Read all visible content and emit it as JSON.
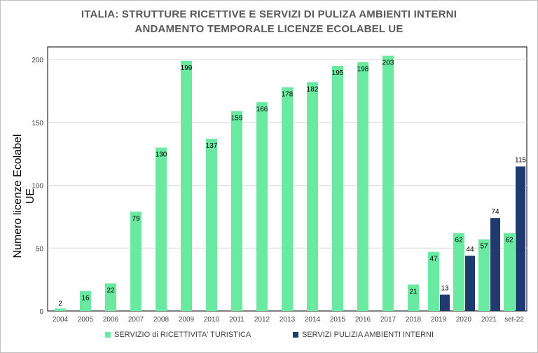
{
  "title_line1": "ITALIA:  STRUTTURE RICETTIVE E SERVIZI DI PULIZA AMBIENTI INTERNI",
  "title_line2": "ANDAMENTO TEMPORALE LICENZE ECOLABEL UE",
  "colors": {
    "green": "#6aeaa1",
    "navy": "#1f3a6e",
    "grid": "#d9d9d9"
  },
  "chart_data": {
    "type": "bar",
    "title": "ITALIA:  STRUTTURE RICETTIVE E SERVIZI DI PULIZA AMBIENTI INTERNI — ANDAMENTO TEMPORALE LICENZE ECOLABEL UE",
    "xlabel": "",
    "ylabel": "Numero licenze Ecolabel UE",
    "ylim": [
      0,
      200
    ],
    "yticks": [
      0,
      50,
      100,
      150,
      200
    ],
    "grid": true,
    "legend_position": "bottom",
    "categories": [
      "2004",
      "2005",
      "2006",
      "2007",
      "2008",
      "2009",
      "2010",
      "2011",
      "2012",
      "2013",
      "2014",
      "2015",
      "2016",
      "2017",
      "2018",
      "2019",
      "2020",
      "2021",
      "set-22"
    ],
    "series": [
      {
        "name": "SERVIZIO di RICETTIVITA' TURISTICA",
        "color": "#6aeaa1",
        "values": [
          2,
          16,
          22,
          79,
          130,
          199,
          137,
          159,
          166,
          178,
          182,
          195,
          198,
          203,
          21,
          47,
          62,
          57,
          62
        ],
        "labels": [
          "2",
          "16",
          "22",
          "79",
          "130",
          "199",
          "137",
          "159",
          "166",
          "178",
          "182",
          "195",
          "198",
          "203",
          "21",
          "47",
          "62",
          "57",
          "62"
        ]
      },
      {
        "name": "SERVIZI PULIZIA AMBIENTI INTERNI",
        "color": "#1f3a6e",
        "values": [
          null,
          null,
          null,
          null,
          null,
          null,
          null,
          null,
          null,
          null,
          null,
          null,
          null,
          null,
          null,
          13,
          44,
          74,
          115
        ],
        "labels": [
          null,
          null,
          null,
          null,
          null,
          null,
          null,
          null,
          null,
          null,
          null,
          null,
          null,
          null,
          null,
          "13",
          "44",
          "74",
          "115"
        ]
      }
    ]
  }
}
